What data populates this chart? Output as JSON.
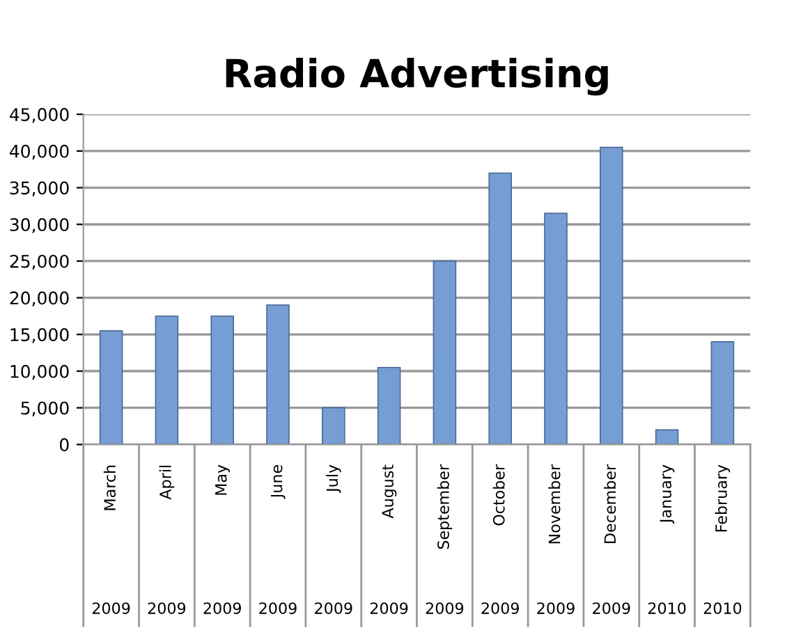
{
  "chart_data": {
    "type": "bar",
    "title": "Radio Advertising",
    "categories": [
      "March\n2009",
      "April\n2009",
      "May\n2009",
      "June\n2009",
      "July\n2009",
      "August\n2009",
      "September\n2009",
      "October\n2009",
      "November\n2009",
      "December\n2009",
      "January\n2010",
      "February\n2010"
    ],
    "values": [
      15500,
      17500,
      17500,
      19000,
      5000,
      10500,
      25000,
      37000,
      31500,
      40500,
      2000,
      14000
    ],
    "color": "#779ed4",
    "ylim": [
      0,
      45000
    ],
    "yticks": [
      {
        "value": 0,
        "label": "0"
      },
      {
        "value": 5000,
        "label": "5,000"
      },
      {
        "value": 10000,
        "label": "10,000"
      },
      {
        "value": 15000,
        "label": "15,000"
      },
      {
        "value": 20000,
        "label": "20,000"
      },
      {
        "value": 25000,
        "label": "25,000"
      },
      {
        "value": 30000,
        "label": "30,000"
      },
      {
        "value": 35000,
        "label": "35,000"
      },
      {
        "value": 40000,
        "label": "40,000"
      },
      {
        "value": 45000,
        "label": "45,000"
      }
    ],
    "grid": "y"
  }
}
